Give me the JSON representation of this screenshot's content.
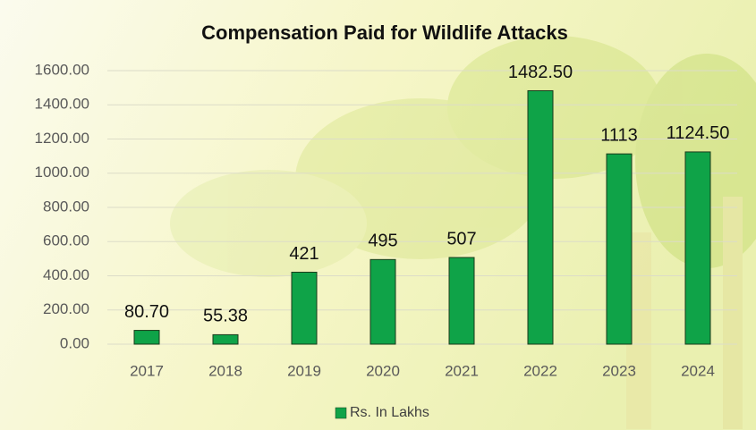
{
  "chart_data": {
    "type": "bar",
    "title": "Compensation Paid for Wildlife Attacks",
    "categories": [
      "2017",
      "2018",
      "2019",
      "2020",
      "2021",
      "2022",
      "2023",
      "2024"
    ],
    "series": [
      {
        "name": "Rs. In Lakhs",
        "color": "#0fa348",
        "values": [
          80.7,
          55.38,
          421,
          495,
          507,
          1482.5,
          1113,
          1124.5
        ],
        "value_labels": [
          "80.70",
          "55.38",
          "421",
          "495",
          "507",
          "1482.50",
          "1113",
          "1124.50"
        ]
      }
    ],
    "ylim": [
      0,
      1600
    ],
    "yticks": [
      {
        "value": 0,
        "label": "0.00"
      },
      {
        "value": 200,
        "label": "200.00"
      },
      {
        "value": 400,
        "label": "400.00"
      },
      {
        "value": 600,
        "label": "600.00"
      },
      {
        "value": 800,
        "label": "800.00"
      },
      {
        "value": 1000,
        "label": "1000.00"
      },
      {
        "value": 1200,
        "label": "1200.00"
      },
      {
        "value": 1400,
        "label": "1400.00"
      },
      {
        "value": 1600,
        "label": "1600.00"
      }
    ],
    "grid": true,
    "legend": "bottom"
  }
}
